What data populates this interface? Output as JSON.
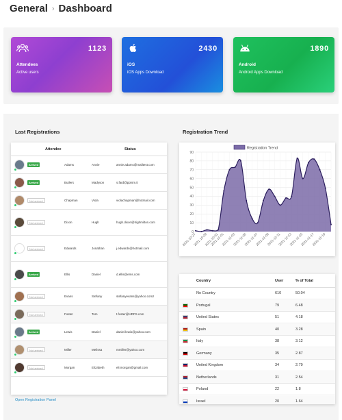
{
  "breadcrumb": {
    "section": "General",
    "separator": "›",
    "page": "Dashboard"
  },
  "cards": [
    {
      "title": "Attendees",
      "subtitle": "Active users",
      "count": "1123",
      "icon": "users-icon"
    },
    {
      "title": "iOS",
      "subtitle": "iOS Apps Download",
      "count": "2430",
      "icon": "apple-icon"
    },
    {
      "title": "Android",
      "subtitle": "Android Apps Download",
      "count": "1890",
      "icon": "android-icon"
    }
  ],
  "registrations": {
    "title": "Last Registrations",
    "col_attendee": "Attendee",
    "col_status": "Status",
    "rows": [
      {
        "status": "Arrived",
        "last": "Adams",
        "first": "Annie",
        "email": "annie.adams@mailtest.com",
        "avatar_color": "#6a7b8c"
      },
      {
        "status": "Arrived",
        "last": "Butlers",
        "first": "Madyson",
        "email": "s.fard@pptsm.it",
        "avatar_color": "#8a5a4a"
      },
      {
        "status": "Not arrived",
        "last": "Chapman",
        "first": "Viola",
        "email": "violachapman@hotmail.com",
        "avatar_color": "#b08a6a"
      },
      {
        "status": "Not arrived",
        "last": "Dixon",
        "first": "Hugh",
        "email": "hugh.dixon@highmilton.com",
        "avatar_color": "#5a4a3a"
      },
      {
        "status": "Not arrived",
        "last": "Edwards",
        "first": "Jonathan",
        "email": "j.edwards@hotmail.com",
        "avatar_color": "#ffffff"
      },
      {
        "status": "Arrived",
        "last": "Ellis",
        "first": "Daniel",
        "email": "d.ellis@ems.com",
        "avatar_color": "#4a4a4a"
      },
      {
        "status": "Not arrived",
        "last": "Evans",
        "first": "Stefany",
        "email": "stefanyevans@yahoo.comz",
        "avatar_color": "#a07050"
      },
      {
        "status": "Not arrived",
        "last": "Foster",
        "first": "Tom",
        "email": "t.foster@HDFS.com",
        "avatar_color": "#7a6a5a"
      },
      {
        "status": "Arrived",
        "last": "Lewis",
        "first": "Daniel",
        "email": "daniel.lewis@yahoo.com",
        "avatar_color": "#6a7a8a"
      },
      {
        "status": "Not arrived",
        "last": "Miller",
        "first": "Melissa",
        "email": "mmiller@yahoo.com",
        "avatar_color": "#b09070"
      },
      {
        "status": "Not arrived",
        "last": "Morgan",
        "first": "Elizabeth",
        "email": "eli.morgan@gmail.com",
        "avatar_color": "#503a30"
      }
    ],
    "link": "Open Registration Panel"
  },
  "trend": {
    "title": "Registration Trend"
  },
  "chart_data": {
    "type": "area",
    "legend": "Registration Trend",
    "legend_position": "top-center",
    "color": "#7b6ba8",
    "ylim": [
      0,
      90
    ],
    "yticks": [
      0,
      10,
      20,
      30,
      40,
      50,
      60,
      70,
      80,
      90
    ],
    "grid": true,
    "x": [
      "2021-10-27",
      "2021-10-28",
      "2021-10-29",
      "2021-10-30",
      "2021-10-31",
      "2021-11-01",
      "2021-11-02",
      "2021-11-03",
      "2021-11-04",
      "2021-11-05",
      "2021-11-06",
      "2021-11-07",
      "2021-11-08",
      "2021-11-09",
      "2021-11-10",
      "2021-11-11",
      "2021-11-12",
      "2021-11-13",
      "2021-11-14",
      "2021-11-15",
      "2021-11-16",
      "2021-11-17",
      "2021-11-18",
      "2021-11-19",
      "2021-11-20"
    ],
    "xtick_labels": [
      "2021-10-27",
      "2021-10-29",
      "2021-10-31",
      "2021-11-01",
      "2021-11-03",
      "2021-11-05",
      "2021-11-07",
      "2021-11-09",
      "2021-11-11",
      "2021-11-13",
      "2021-11-15",
      "2021-11-17",
      "2021-11-19"
    ],
    "values": [
      1,
      0,
      2,
      1,
      2,
      46,
      70,
      73,
      80,
      35,
      15,
      10,
      35,
      48,
      40,
      30,
      38,
      40,
      83,
      60,
      78,
      82,
      70,
      49,
      8
    ]
  },
  "countries": {
    "col_country": "Country",
    "col_user": "User",
    "col_total": "% of Total",
    "rows": [
      {
        "country": "No Country",
        "user": "610",
        "pct": "50.04",
        "flag": ""
      },
      {
        "country": "Portugal",
        "user": "79",
        "pct": "6.48",
        "flag": "portugal-flag-icon"
      },
      {
        "country": "United States",
        "user": "51",
        "pct": "4.18",
        "flag": "us-flag-icon"
      },
      {
        "country": "Spain",
        "user": "40",
        "pct": "3.28",
        "flag": "spain-flag-icon"
      },
      {
        "country": "Italy",
        "user": "38",
        "pct": "3.12",
        "flag": "italy-flag-icon"
      },
      {
        "country": "Germany",
        "user": "35",
        "pct": "2.87",
        "flag": "germany-flag-icon"
      },
      {
        "country": "United Kingdom",
        "user": "34",
        "pct": "2.79",
        "flag": "uk-flag-icon"
      },
      {
        "country": "Netherlands",
        "user": "31",
        "pct": "2.54",
        "flag": "netherlands-flag-icon"
      },
      {
        "country": "Poland",
        "user": "22",
        "pct": "1.8",
        "flag": "poland-flag-icon"
      },
      {
        "country": "Israel",
        "user": "20",
        "pct": "1.64",
        "flag": "israel-flag-icon"
      }
    ]
  }
}
